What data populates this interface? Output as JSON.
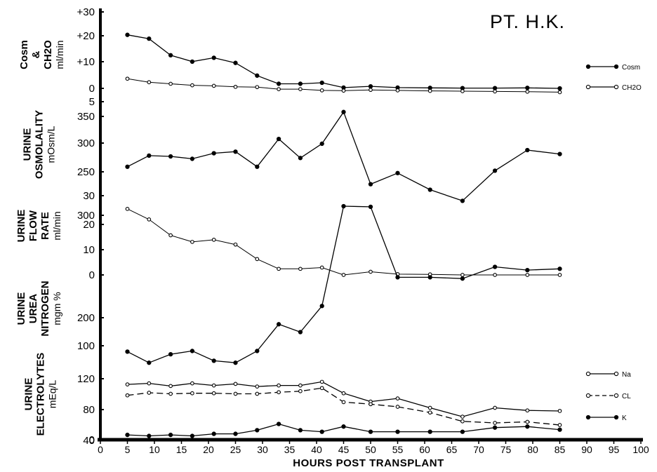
{
  "title": "PT. H.K.",
  "chart_data": [
    {
      "type": "line",
      "panel": "free-water",
      "ylabel_lines": [
        "Cosm",
        "&",
        "CH2O"
      ],
      "yunit": "ml/min",
      "yticks": [
        "+30",
        "+20",
        "+10",
        "0"
      ],
      "ylim": [
        0,
        30
      ],
      "series": [
        {
          "name": "Cosm",
          "marker": "filled",
          "x": [
            5,
            9,
            13,
            17,
            21,
            25,
            29,
            33,
            37,
            41,
            45,
            50,
            55,
            61,
            67,
            73,
            79,
            85
          ],
          "y": [
            21,
            19.5,
            13,
            10.5,
            12,
            10,
            5,
            1.8,
            1.8,
            2.2,
            0.3,
            0.8,
            0.3,
            0.2,
            0.1,
            0.1,
            0.2,
            0
          ]
        },
        {
          "name": "CH2O",
          "marker": "open",
          "x": [
            5,
            9,
            13,
            17,
            21,
            25,
            29,
            33,
            37,
            41,
            45,
            50,
            55,
            61,
            67,
            73,
            79,
            85
          ],
          "y": [
            3.8,
            2.4,
            1.8,
            1.2,
            1.0,
            0.6,
            0.5,
            -0.3,
            -0.3,
            -0.8,
            -0.9,
            -0.6,
            -0.8,
            -1.0,
            -1.1,
            -1.2,
            -1.3,
            -1.5
          ]
        }
      ]
    },
    {
      "type": "line",
      "panel": "osmolality",
      "ylabel_lines": [
        "URINE",
        "OSMOLALITY",
        "mOsm/L"
      ],
      "yticks": [
        "5",
        "350",
        "300",
        "250"
      ],
      "ylim": [
        230,
        360
      ],
      "series": [
        {
          "marker": "filled",
          "x": [
            5,
            9,
            13,
            17,
            21,
            25,
            29,
            33,
            37,
            41,
            45,
            50,
            55,
            61,
            67,
            73,
            79,
            85
          ],
          "y": [
            278,
            292,
            291,
            288,
            295,
            297,
            278,
            313,
            289,
            307,
            347,
            256,
            270,
            249,
            235,
            273,
            299,
            294
          ]
        }
      ]
    },
    {
      "type": "line",
      "panel": "flow",
      "ylabel_lines": [
        "URINE",
        "FLOW",
        "RATE",
        "ml/min"
      ],
      "yticks": [
        "30",
        "20",
        "10",
        "0"
      ],
      "ylim": [
        0,
        30
      ],
      "series": [
        {
          "marker": "open",
          "x": [
            5,
            9,
            13,
            17,
            21,
            25,
            29,
            33,
            37,
            41,
            45,
            50,
            55,
            61,
            67,
            73,
            79,
            85
          ],
          "y": [
            25,
            21,
            15,
            12.5,
            13.3,
            11.5,
            6,
            2.3,
            2.3,
            2.8,
            0,
            1.2,
            0.3,
            0.2,
            0,
            0,
            0,
            0
          ]
        }
      ]
    },
    {
      "type": "line",
      "panel": "urea",
      "ylabel_lines": [
        "URINE",
        "UREA",
        "NITROGEN",
        "mgm %"
      ],
      "yticks": [
        "300",
        "200",
        "100"
      ],
      "ylim": [
        100,
        300
      ],
      "series": [
        {
          "marker": "filled",
          "x": [
            5,
            9,
            13,
            17,
            21,
            25,
            29,
            33,
            37,
            41,
            45,
            50,
            55,
            61,
            67,
            73,
            79,
            85
          ],
          "y": [
            91,
            74,
            87,
            92,
            77,
            74,
            92,
            133,
            121,
            161,
            314,
            313,
            205,
            205,
            203,
            221,
            216,
            218
          ]
        }
      ]
    },
    {
      "type": "line",
      "panel": "electrolytes",
      "ylabel_lines": [
        "URINE",
        "ELECTROLYTES",
        "mEq/L"
      ],
      "yticks": [
        "120",
        "80",
        "40",
        "0"
      ],
      "ylim": [
        0,
        120
      ],
      "series": [
        {
          "name": "Na",
          "marker": "open",
          "dash": false,
          "x": [
            5,
            9,
            13,
            17,
            21,
            25,
            29,
            33,
            37,
            41,
            45,
            50,
            55,
            61,
            67,
            73,
            79,
            85
          ],
          "y": [
            105,
            107,
            102,
            107,
            103,
            106,
            101,
            103,
            103,
            110,
            88,
            72,
            78,
            60,
            43,
            60,
            55,
            54
          ]
        },
        {
          "name": "CL",
          "marker": "open",
          "dash": true,
          "x": [
            5,
            9,
            13,
            17,
            21,
            25,
            29,
            33,
            37,
            41,
            45,
            50,
            55,
            61,
            67,
            73,
            79,
            85
          ],
          "y": [
            84,
            89,
            87,
            88,
            88,
            87,
            87,
            90,
            92,
            98,
            71,
            67,
            62,
            51,
            34,
            31,
            33,
            27
          ]
        },
        {
          "name": "K",
          "marker": "filled",
          "dash": false,
          "x": [
            5,
            9,
            13,
            17,
            21,
            25,
            29,
            33,
            37,
            41,
            45,
            50,
            55,
            61,
            67,
            73,
            79,
            85
          ],
          "y": [
            8,
            6,
            8,
            6,
            10,
            10,
            17,
            29,
            17,
            14,
            24,
            14,
            14,
            14,
            14,
            22,
            24,
            18
          ]
        }
      ]
    }
  ],
  "xaxis": {
    "label": "HOURS POST TRANSPLANT",
    "ticks": [
      "0",
      "5",
      "10",
      "15",
      "20",
      "25",
      "30",
      "35",
      "40",
      "45",
      "50",
      "55",
      "60",
      "65",
      "70",
      "75",
      "80",
      "85",
      "90",
      "95",
      "100"
    ],
    "xlim": [
      0,
      100
    ]
  },
  "legends": [
    {
      "label": "Cosm",
      "marker": "filled"
    },
    {
      "label": "CH2O",
      "marker": "open"
    },
    {
      "label": "Na",
      "marker": "open"
    },
    {
      "label": "CL",
      "marker": "open-dashed"
    },
    {
      "label": "K",
      "marker": "filled"
    }
  ]
}
